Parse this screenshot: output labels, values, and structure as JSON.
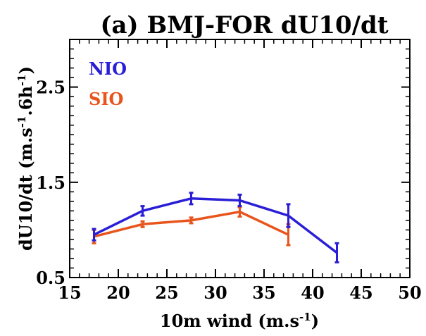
{
  "colors": {
    "NIO": "#2a1fd6",
    "SIO": "#e8541c",
    "axes": "#000000",
    "background": "#ffffff"
  },
  "chart_data": {
    "type": "line",
    "title": "(a) BMJ-FOR dU10/dt",
    "xlabel": "10m wind (m.s",
    "xlabel_sup": "-1",
    "xlabel_end": ")",
    "ylabel": "dU10/dt (m.s",
    "ylabel_sup1": "-1",
    "ylabel_mid": ".6h",
    "ylabel_sup2": "-1",
    "ylabel_end": ")",
    "xlim": [
      15,
      50
    ],
    "ylim": [
      0.5,
      3.0
    ],
    "xticks": [
      "15",
      "20",
      "25",
      "30",
      "35",
      "40",
      "45",
      "50"
    ],
    "xtick_values": [
      15,
      20,
      25,
      30,
      35,
      40,
      45,
      50
    ],
    "yticks": [
      "0.5",
      "1.5",
      "2.5"
    ],
    "ytick_values": [
      0.5,
      1.5,
      2.5
    ],
    "grid": false,
    "legend": "top-left",
    "series": [
      {
        "name": "NIO",
        "color": "#2a1fd6",
        "x": [
          17.5,
          22.5,
          27.5,
          32.5,
          37.5,
          42.5
        ],
        "y": [
          0.95,
          1.2,
          1.33,
          1.31,
          1.15,
          0.76
        ],
        "err": [
          0.06,
          0.05,
          0.06,
          0.06,
          0.12,
          0.1
        ]
      },
      {
        "name": "SIO",
        "color": "#e8541c",
        "x": [
          17.5,
          22.5,
          27.5,
          32.5,
          37.5
        ],
        "y": [
          0.93,
          1.06,
          1.1,
          1.19,
          0.95
        ],
        "err": [
          0.07,
          0.03,
          0.03,
          0.05,
          0.11
        ]
      }
    ]
  }
}
